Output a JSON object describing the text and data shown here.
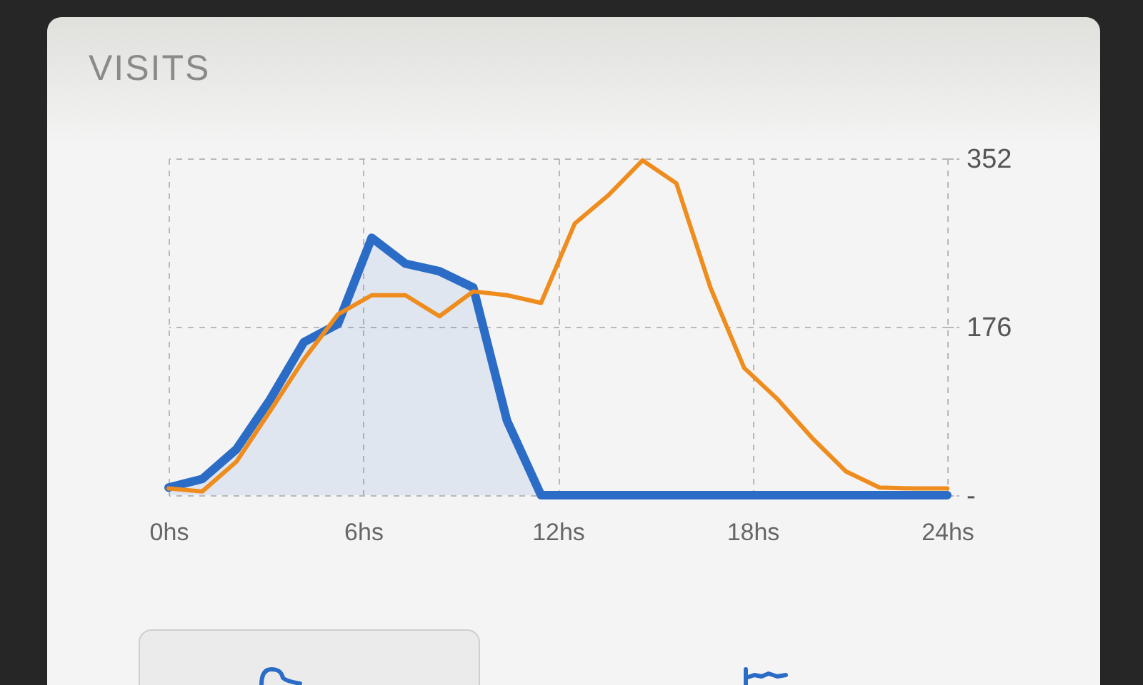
{
  "chart_data": {
    "type": "line",
    "title": "VISITS",
    "x": [
      0,
      1.04,
      2.09,
      3.13,
      4.17,
      5.22,
      6.26,
      7.3,
      8.35,
      9.39,
      10.43,
      11.48,
      12.52,
      13.57,
      14.61,
      15.65,
      16.7,
      17.74,
      18.78,
      19.83,
      20.87,
      21.91,
      22.96,
      24
    ],
    "series": [
      {
        "type": "area",
        "color": "#2b6cc6",
        "values": [
          8,
          17,
          48,
          100,
          160,
          179,
          269,
          242,
          234,
          217,
          78,
          0,
          0,
          0,
          0,
          0,
          0,
          0,
          0,
          0,
          0,
          0,
          0,
          0
        ]
      },
      {
        "color": "#ef8c1e",
        "values": [
          7,
          4,
          35,
          88,
          142,
          189,
          209,
          209,
          187,
          213,
          209,
          201,
          284,
          314,
          350,
          326,
          217,
          133,
          100,
          60,
          25,
          8,
          7,
          7
        ]
      }
    ],
    "xlim": [
      0,
      24
    ],
    "xticks": [
      {
        "value": 0,
        "label": "0hs"
      },
      {
        "value": 6,
        "label": "6hs"
      },
      {
        "value": 12,
        "label": "12hs"
      },
      {
        "value": 18,
        "label": "18hs"
      },
      {
        "value": 24,
        "label": "24hs"
      }
    ],
    "ylim": [
      0,
      352
    ],
    "yticks": [
      {
        "value": 0,
        "label": "-"
      },
      176,
      352
    ],
    "grid": true
  }
}
